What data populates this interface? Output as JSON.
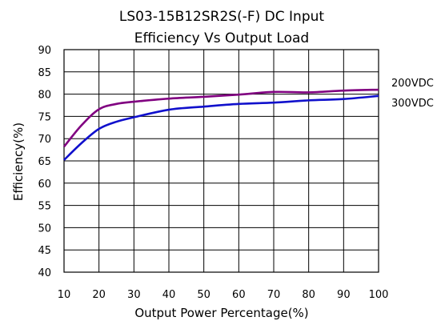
{
  "chart_data": {
    "type": "line",
    "title": [
      "LS03-15B12SR2S(-F) DC Input",
      "Efficiency Vs Output Load"
    ],
    "xlabel": "Output Power Percentage(%)",
    "ylabel": "Efficiency(%)",
    "xlim": [
      10,
      100
    ],
    "ylim": [
      40,
      90
    ],
    "xticks": [
      10,
      20,
      30,
      40,
      50,
      60,
      70,
      80,
      90,
      100
    ],
    "yticks": [
      40,
      45,
      50,
      55,
      60,
      65,
      70,
      75,
      80,
      85,
      90
    ],
    "grid": true,
    "series": [
      {
        "name": "200VDC",
        "color": "#800080",
        "x": [
          10,
          15,
          20,
          25,
          30,
          40,
          50,
          60,
          70,
          80,
          90,
          100
        ],
        "y": [
          68.2,
          73.0,
          76.6,
          77.8,
          78.3,
          79.0,
          79.4,
          79.9,
          80.5,
          80.4,
          80.8,
          81.0
        ]
      },
      {
        "name": "300VDC",
        "color": "#1010cc",
        "x": [
          10,
          15,
          20,
          25,
          30,
          40,
          50,
          60,
          70,
          80,
          90,
          100
        ],
        "y": [
          65.2,
          69.0,
          72.2,
          73.8,
          74.8,
          76.5,
          77.2,
          77.8,
          78.1,
          78.6,
          78.9,
          79.6
        ]
      }
    ]
  }
}
